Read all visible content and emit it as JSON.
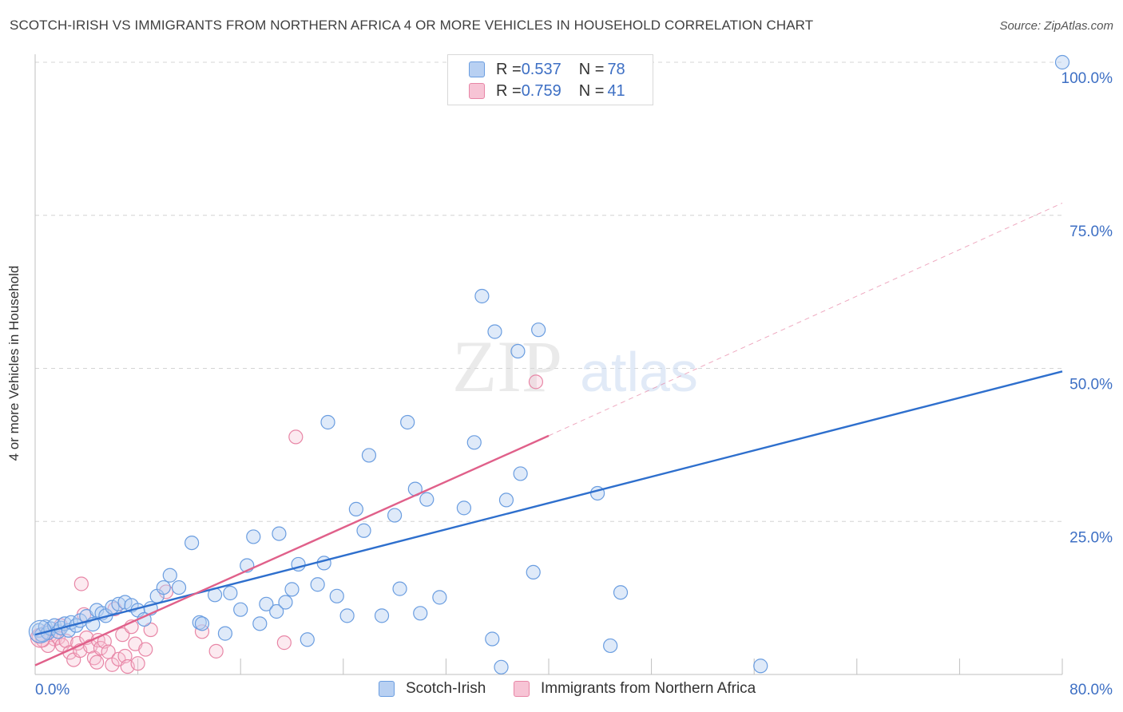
{
  "title": "SCOTCH-IRISH VS IMMIGRANTS FROM NORTHERN AFRICA 4 OR MORE VEHICLES IN HOUSEHOLD CORRELATION CHART",
  "source": "Source: ZipAtlas.com",
  "watermark": {
    "zip": "ZIP",
    "atlas": "atlas"
  },
  "colors": {
    "blue": "#6a9de0",
    "blue_fill": "#b8d0f2",
    "blue_line": "#2e6fcd",
    "pink": "#e886a6",
    "pink_fill": "#f7c4d5",
    "pink_line": "#e0608a",
    "axis_label": "#3d6fc4"
  },
  "legend_top": {
    "rows": [
      {
        "r_label": "R = ",
        "r_value": "0.537",
        "n_label": "N = ",
        "n_value": "78"
      },
      {
        "r_label": "R = ",
        "r_value": "0.759",
        "n_label": "N = ",
        "n_value": "41"
      }
    ]
  },
  "legend_bottom": [
    "Scotch-Irish",
    "Immigrants from Northern Africa"
  ],
  "chart_data": {
    "type": "scatter",
    "title": "SCOTCH-IRISH VS IMMIGRANTS FROM NORTHERN AFRICA 4 OR MORE VEHICLES IN HOUSEHOLD CORRELATION CHART",
    "xlabel": "",
    "ylabel": "4 or more Vehicles in Household",
    "xlim": [
      0,
      80
    ],
    "ylim": [
      0,
      100
    ],
    "x_tick_labels": [
      "0.0%",
      "80.0%"
    ],
    "y_tick_labels": [
      "25.0%",
      "50.0%",
      "75.0%",
      "100.0%"
    ],
    "y_ticks": [
      25,
      50,
      75,
      100
    ],
    "x_ticks": [
      0,
      8,
      16,
      24,
      32,
      40,
      48,
      56,
      64,
      72,
      80
    ],
    "grid": true,
    "series": [
      {
        "name": "Scotch-Irish",
        "trend": {
          "x": [
            0,
            80
          ],
          "y": [
            6.5,
            49.5
          ]
        },
        "points": [
          [
            0.3,
            7.2
          ],
          [
            0.5,
            6.5
          ],
          [
            0.8,
            7.8
          ],
          [
            1.0,
            6.8
          ],
          [
            1.2,
            7.5
          ],
          [
            1.5,
            8.0
          ],
          [
            1.8,
            7.0
          ],
          [
            2.0,
            7.6
          ],
          [
            2.3,
            8.3
          ],
          [
            2.6,
            7.2
          ],
          [
            2.8,
            8.5
          ],
          [
            3.2,
            8.0
          ],
          [
            3.5,
            8.8
          ],
          [
            4.0,
            9.5
          ],
          [
            4.5,
            8.2
          ],
          [
            4.8,
            10.5
          ],
          [
            5.2,
            10.0
          ],
          [
            5.5,
            9.6
          ],
          [
            6.0,
            11.0
          ],
          [
            6.5,
            11.5
          ],
          [
            7.0,
            11.8
          ],
          [
            7.5,
            11.3
          ],
          [
            8.0,
            10.5
          ],
          [
            8.5,
            9.0
          ],
          [
            9.0,
            10.8
          ],
          [
            9.5,
            12.8
          ],
          [
            10.0,
            14.2
          ],
          [
            10.5,
            16.2
          ],
          [
            11.2,
            14.2
          ],
          [
            12.8,
            8.5
          ],
          [
            12.2,
            21.5
          ],
          [
            13.0,
            8.3
          ],
          [
            14.0,
            13.0
          ],
          [
            14.8,
            6.7
          ],
          [
            15.2,
            13.3
          ],
          [
            16.0,
            10.6
          ],
          [
            16.5,
            17.8
          ],
          [
            17.0,
            22.5
          ],
          [
            17.5,
            8.3
          ],
          [
            18.0,
            11.5
          ],
          [
            18.8,
            10.3
          ],
          [
            19.0,
            23.0
          ],
          [
            19.5,
            11.8
          ],
          [
            20.0,
            13.9
          ],
          [
            20.5,
            18.0
          ],
          [
            21.2,
            5.7
          ],
          [
            22.0,
            14.7
          ],
          [
            22.5,
            18.2
          ],
          [
            22.8,
            41.2
          ],
          [
            23.5,
            12.8
          ],
          [
            24.3,
            9.6
          ],
          [
            25.0,
            27.0
          ],
          [
            25.6,
            23.5
          ],
          [
            26.0,
            35.8
          ],
          [
            27.0,
            9.6
          ],
          [
            28.0,
            26.0
          ],
          [
            28.4,
            14.0
          ],
          [
            29.0,
            41.2
          ],
          [
            29.6,
            30.3
          ],
          [
            30.0,
            10.0
          ],
          [
            30.5,
            28.6
          ],
          [
            31.5,
            12.6
          ],
          [
            33.4,
            27.2
          ],
          [
            34.2,
            37.9
          ],
          [
            34.8,
            61.8
          ],
          [
            35.6,
            5.8
          ],
          [
            35.8,
            56.0
          ],
          [
            36.3,
            1.2
          ],
          [
            36.7,
            28.5
          ],
          [
            37.6,
            52.8
          ],
          [
            37.8,
            32.8
          ],
          [
            38.8,
            16.7
          ],
          [
            39.2,
            56.3
          ],
          [
            43.8,
            29.6
          ],
          [
            44.8,
            4.7
          ],
          [
            45.6,
            13.4
          ],
          [
            56.5,
            1.4
          ],
          [
            80.0,
            100.0
          ]
        ]
      },
      {
        "name": "Immigrants from Northern Africa",
        "trend": {
          "x": [
            0,
            40
          ],
          "y": [
            1.5,
            39.0
          ]
        },
        "trend_extension": {
          "x": [
            40,
            80
          ],
          "y": [
            39.0,
            77.0
          ]
        },
        "points": [
          [
            0.3,
            6.2
          ],
          [
            0.6,
            5.6
          ],
          [
            0.9,
            7.0
          ],
          [
            1.2,
            6.5
          ],
          [
            1.5,
            5.8
          ],
          [
            1.8,
            6.0
          ],
          [
            2.1,
            4.8
          ],
          [
            2.4,
            5.5
          ],
          [
            2.7,
            3.6
          ],
          [
            3.0,
            2.4
          ],
          [
            3.3,
            5.1
          ],
          [
            3.5,
            3.9
          ],
          [
            3.6,
            14.8
          ],
          [
            3.8,
            9.8
          ],
          [
            4.0,
            6.0
          ],
          [
            4.3,
            4.6
          ],
          [
            4.6,
            2.7
          ],
          [
            4.9,
            5.6
          ],
          [
            5.1,
            4.3
          ],
          [
            5.4,
            5.4
          ],
          [
            5.7,
            3.7
          ],
          [
            6.0,
            1.6
          ],
          [
            6.2,
            10.7
          ],
          [
            6.5,
            2.5
          ],
          [
            6.8,
            6.5
          ],
          [
            7.0,
            3.0
          ],
          [
            7.2,
            1.3
          ],
          [
            7.5,
            7.8
          ],
          [
            7.8,
            5.0
          ],
          [
            8.0,
            1.8
          ],
          [
            8.6,
            4.1
          ],
          [
            9.0,
            7.3
          ],
          [
            10.2,
            13.5
          ],
          [
            13.0,
            7.0
          ],
          [
            14.1,
            3.8
          ],
          [
            19.4,
            5.2
          ],
          [
            20.3,
            38.8
          ],
          [
            39.0,
            47.8
          ],
          [
            1.0,
            4.7
          ],
          [
            2.0,
            8.0
          ],
          [
            4.8,
            2.0
          ]
        ]
      }
    ]
  }
}
